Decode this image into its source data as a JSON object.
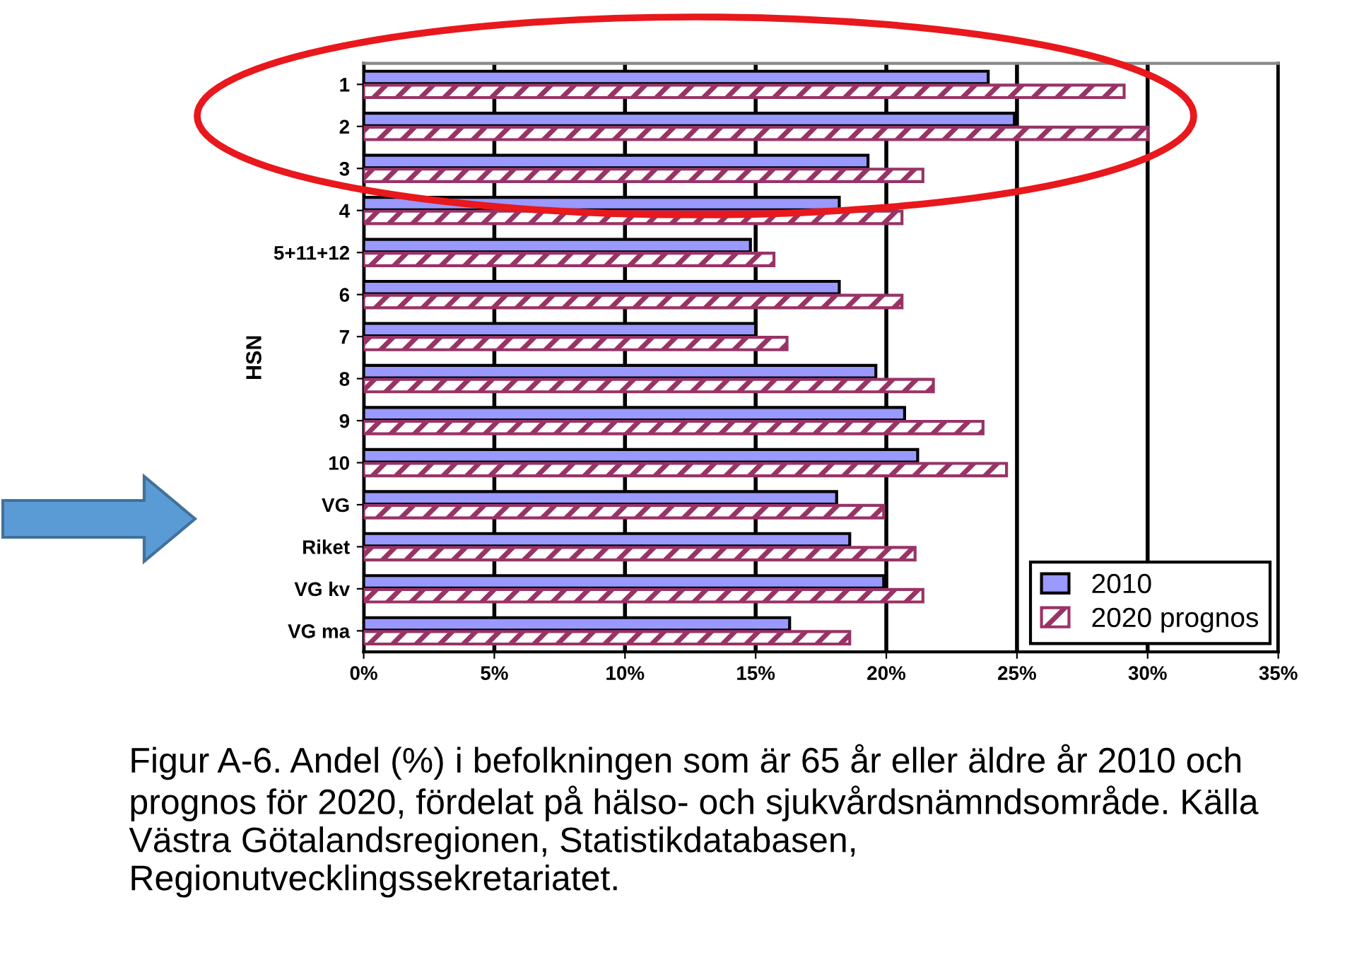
{
  "chart_data": {
    "type": "bar",
    "orientation": "horizontal",
    "ylabel": "HSN",
    "categories": [
      "1",
      "2",
      "3",
      "4",
      "5+11+12",
      "6",
      "7",
      "8",
      "9",
      "10",
      "VG",
      "Riket",
      "VG kv",
      "VG ma"
    ],
    "series": [
      {
        "name": "2010",
        "color": "#9999ff",
        "values": [
          23.9,
          24.9,
          19.3,
          18.2,
          14.8,
          18.2,
          15.0,
          19.6,
          20.7,
          21.2,
          18.1,
          18.6,
          19.9,
          16.3
        ]
      },
      {
        "name": "2020 prognos",
        "color": "#993366",
        "values": [
          29.1,
          30.0,
          21.4,
          20.6,
          15.7,
          20.6,
          16.2,
          21.8,
          23.7,
          24.6,
          19.9,
          21.1,
          21.4,
          18.6
        ]
      }
    ],
    "xlim": [
      0,
      35
    ],
    "xticks": [
      {
        "value": 0,
        "label": "0%"
      },
      {
        "value": 5,
        "label": "5%"
      },
      {
        "value": 10,
        "label": "10%"
      },
      {
        "value": 15,
        "label": "15%"
      },
      {
        "value": 20,
        "label": "20%"
      },
      {
        "value": 25,
        "label": "25%"
      },
      {
        "value": 30,
        "label": "30%"
      },
      {
        "value": 35,
        "label": "35%"
      }
    ],
    "grid": "x",
    "legend": "bottom right",
    "annotations": [
      "Figur A-6. Andel (%) i befolkningen som är 65 år eller äldre år 2010 och prognos för 2020, fördelat på hälso- och sjukvårdsnämndsområde. Källa Västra Götalandsregionen, Statistikdatabasen, Regionutvecklingssekretariatet."
    ]
  }
}
